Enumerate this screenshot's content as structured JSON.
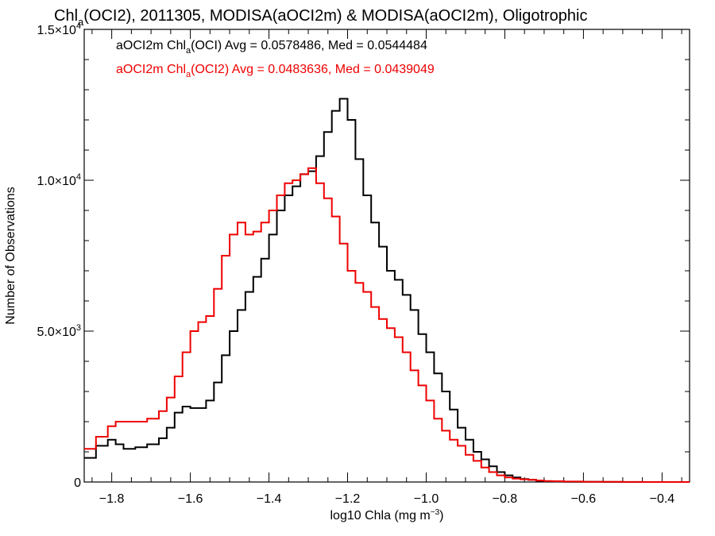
{
  "chart_data": {
    "type": "line",
    "title": {
      "pre": "Chl",
      "sub": "a",
      "post": "(OCI2), 2011305, MODISA(aOCI2m) & MODISA(aOCI2m), Oligotrophic"
    },
    "xlabel": {
      "pre": "log10 Chla (mg m",
      "sup": "−3",
      "post": ")"
    },
    "ylabel": "Number of Observations",
    "xlim": [
      -1.87,
      -0.33
    ],
    "ylim": [
      0,
      15000
    ],
    "x_ticks": [
      -1.8,
      -1.6,
      -1.4,
      -1.2,
      -1.0,
      -0.8,
      -0.6,
      -0.4
    ],
    "x_tick_labels": [
      "−1.8",
      "−1.6",
      "−1.4",
      "−1.2",
      "−1.0",
      "−0.8",
      "−0.6",
      "−0.4"
    ],
    "y_ticks": [
      0,
      5000,
      10000,
      15000
    ],
    "y_tick_labels": [
      {
        "main": "0",
        "exp": ""
      },
      {
        "main": "5.0×10",
        "exp": "3"
      },
      {
        "main": "1.0×10",
        "exp": "4"
      },
      {
        "main": "1.5×10",
        "exp": "4"
      }
    ],
    "legend": [
      {
        "pre": "aOCI2m Chl",
        "sub": "a",
        "post": "(OCI) Avg = 0.0578486, Med = 0.0544484",
        "color": "#000000"
      },
      {
        "pre": "aOCI2m Chl",
        "sub": "a",
        "post": "(OCI2) Avg = 0.0483636, Med = 0.0439049",
        "color": "#ee0000"
      }
    ],
    "series": [
      {
        "color": "#000000",
        "x": [
          -1.87,
          -1.84,
          -1.81,
          -1.79,
          -1.77,
          -1.74,
          -1.71,
          -1.68,
          -1.66,
          -1.64,
          -1.62,
          -1.6,
          -1.58,
          -1.56,
          -1.54,
          -1.52,
          -1.5,
          -1.48,
          -1.46,
          -1.44,
          -1.42,
          -1.4,
          -1.38,
          -1.36,
          -1.34,
          -1.32,
          -1.3,
          -1.28,
          -1.26,
          -1.24,
          -1.22,
          -1.2,
          -1.18,
          -1.16,
          -1.14,
          -1.12,
          -1.1,
          -1.08,
          -1.06,
          -1.04,
          -1.02,
          -1.0,
          -0.98,
          -0.96,
          -0.94,
          -0.92,
          -0.9,
          -0.88,
          -0.86,
          -0.84,
          -0.82,
          -0.8,
          -0.78,
          -0.76,
          -0.74,
          -0.72,
          -0.7,
          -0.68,
          -0.65,
          -0.6,
          -0.55,
          -0.5,
          -0.45,
          -0.4,
          -0.33
        ],
        "y": [
          800,
          1200,
          1400,
          1250,
          1100,
          1150,
          1250,
          1450,
          1800,
          2300,
          2500,
          2450,
          2450,
          2700,
          3300,
          4200,
          5000,
          5700,
          6300,
          6800,
          7400,
          8200,
          9000,
          9500,
          9800,
          10200,
          10300,
          10800,
          11600,
          12300,
          12700,
          12000,
          10700,
          9500,
          8600,
          7800,
          7000,
          6700,
          6200,
          5700,
          4900,
          4300,
          3600,
          3000,
          2400,
          1800,
          1400,
          1000,
          750,
          520,
          330,
          220,
          150,
          100,
          70,
          40,
          25,
          15,
          8,
          4,
          2,
          1,
          0,
          0,
          0
        ]
      },
      {
        "color": "#ee0000",
        "x": [
          -1.87,
          -1.84,
          -1.81,
          -1.79,
          -1.77,
          -1.74,
          -1.71,
          -1.68,
          -1.66,
          -1.64,
          -1.62,
          -1.6,
          -1.58,
          -1.56,
          -1.54,
          -1.52,
          -1.5,
          -1.48,
          -1.46,
          -1.44,
          -1.42,
          -1.4,
          -1.38,
          -1.36,
          -1.34,
          -1.32,
          -1.3,
          -1.28,
          -1.26,
          -1.24,
          -1.22,
          -1.2,
          -1.18,
          -1.16,
          -1.14,
          -1.12,
          -1.1,
          -1.08,
          -1.06,
          -1.04,
          -1.02,
          -1.0,
          -0.98,
          -0.96,
          -0.94,
          -0.92,
          -0.9,
          -0.88,
          -0.86,
          -0.84,
          -0.82,
          -0.8,
          -0.78,
          -0.76,
          -0.74,
          -0.72,
          -0.7,
          -0.68,
          -0.65,
          -0.6,
          -0.55,
          -0.5,
          -0.45,
          -0.4,
          -0.33
        ],
        "y": [
          1100,
          1500,
          1850,
          2000,
          2000,
          2000,
          2100,
          2350,
          2800,
          3500,
          4300,
          5000,
          5300,
          5500,
          6400,
          7500,
          8200,
          8600,
          8200,
          8300,
          8600,
          9000,
          9500,
          9900,
          10000,
          10200,
          10400,
          9900,
          9400,
          8800,
          7900,
          7000,
          6600,
          6300,
          5800,
          5400,
          5100,
          4800,
          4300,
          3700,
          3200,
          2700,
          2100,
          1700,
          1400,
          1200,
          900,
          700,
          480,
          330,
          220,
          150,
          110,
          90,
          70,
          50,
          35,
          25,
          15,
          8,
          4,
          2,
          1,
          0,
          0
        ]
      }
    ]
  }
}
